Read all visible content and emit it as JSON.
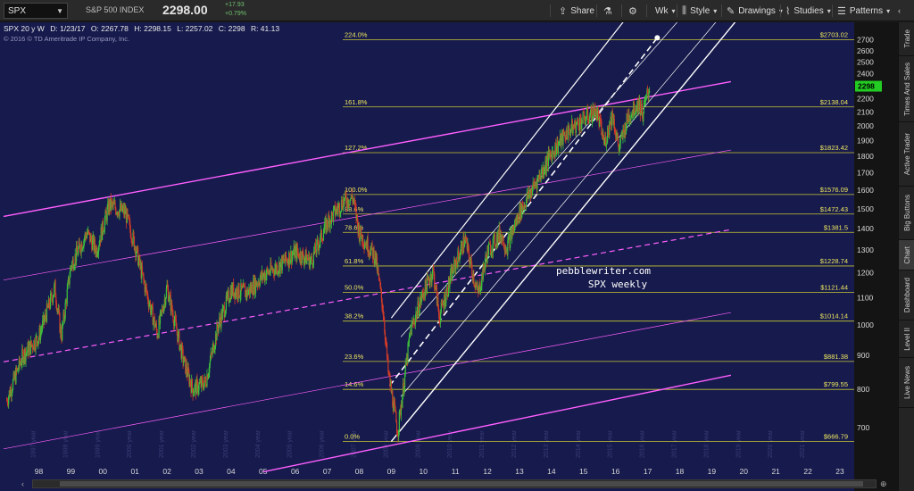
{
  "toolbar": {
    "symbol": "SPX",
    "description": "S&P 500 INDEX",
    "price": "2298.00",
    "change": "+17.93",
    "change_pct": "+0.79%",
    "buttons": {
      "share": "Share",
      "period": "Wk",
      "style": "Style",
      "drawings": "Drawings",
      "studies": "Studies",
      "patterns": "Patterns"
    },
    "icons": [
      "share-icon",
      "flask-icon",
      "gear-icon",
      "calendar-icon",
      "style-icon",
      "pencil-icon",
      "studies-icon",
      "patterns-icon"
    ]
  },
  "chart_header": {
    "title": "SPX 20 y W",
    "date": "D: 1/23/17",
    "open": "O: 2267.78",
    "high": "H: 2298.15",
    "low": "L: 2257.02",
    "close": "C: 2298",
    "range": "R: 41.13",
    "copyright": "© 2016 © TD Ameritrade IP Company, Inc."
  },
  "annotation": {
    "line1": "pebblewriter.com",
    "line2": "SPX weekly"
  },
  "side_tabs": [
    "Trade",
    "Times And Sales",
    "Active Trader",
    "Big Buttons",
    "Chart",
    "Dashboard",
    "Level II",
    "Live News"
  ],
  "colors": {
    "chart_bg": "#161a4c",
    "fib_line": "#c8c832",
    "channel_magenta": "#ff5fff",
    "channel_white": "#ffffff",
    "candle_up": "#3cbf3c",
    "candle_down": "#d23c28",
    "price_badge": "#22cc22"
  },
  "chart_data": {
    "type": "candlestick",
    "scale": "log",
    "ylim": [
      620,
      2800
    ],
    "y_ticks": [
      700,
      800,
      900,
      1000,
      1100,
      1200,
      1300,
      1400,
      1500,
      1600,
      1700,
      1800,
      1900,
      2000,
      2100,
      2200,
      2300,
      2400,
      2500,
      2600,
      2700
    ],
    "x_ticks": [
      "98",
      "99",
      "00",
      "01",
      "02",
      "03",
      "04",
      "05",
      "06",
      "07",
      "08",
      "09",
      "10",
      "11",
      "12",
      "13",
      "14",
      "15",
      "16",
      "17",
      "18",
      "19",
      "20",
      "21",
      "22",
      "23"
    ],
    "last_price": "2298",
    "fib_levels": [
      {
        "pct": "0.0%",
        "value": 666.79,
        "label": "$666.79"
      },
      {
        "pct": "14.6%",
        "value": 799.55,
        "label": "$799.55"
      },
      {
        "pct": "23.6%",
        "value": 881.38,
        "label": "$881.38"
      },
      {
        "pct": "38.2%",
        "value": 1014.14,
        "label": "$1014.14"
      },
      {
        "pct": "50.0%",
        "value": 1121.44,
        "label": "$1121.44"
      },
      {
        "pct": "61.8%",
        "value": 1228.74,
        "label": "$1228.74"
      },
      {
        "pct": "78.6%",
        "value": 1381.5,
        "label": "$1381.5"
      },
      {
        "pct": "88.6%",
        "value": 1472.43,
        "label": "$1472.43"
      },
      {
        "pct": "100.0%",
        "value": 1576.09,
        "label": "$1576.09"
      },
      {
        "pct": "127.2%",
        "value": 1823.42,
        "label": "$1823.42"
      },
      {
        "pct": "161.8%",
        "value": 2138.04,
        "label": "$2138.04"
      },
      {
        "pct": "224.0%",
        "value": 2703.02,
        "label": "$2703.02"
      }
    ],
    "price_path": [
      {
        "t": 1997.0,
        "v": 770
      },
      {
        "t": 1997.5,
        "v": 900
      },
      {
        "t": 1998.0,
        "v": 960
      },
      {
        "t": 1998.5,
        "v": 1140
      },
      {
        "t": 1998.7,
        "v": 960
      },
      {
        "t": 1999.0,
        "v": 1230
      },
      {
        "t": 1999.5,
        "v": 1380
      },
      {
        "t": 1999.8,
        "v": 1300
      },
      {
        "t": 2000.2,
        "v": 1520
      },
      {
        "t": 2000.7,
        "v": 1480
      },
      {
        "t": 2001.0,
        "v": 1320
      },
      {
        "t": 2001.3,
        "v": 1150
      },
      {
        "t": 2001.7,
        "v": 970
      },
      {
        "t": 2002.0,
        "v": 1140
      },
      {
        "t": 2002.5,
        "v": 890
      },
      {
        "t": 2002.8,
        "v": 800
      },
      {
        "t": 2003.2,
        "v": 820
      },
      {
        "t": 2003.6,
        "v": 1000
      },
      {
        "t": 2004.0,
        "v": 1130
      },
      {
        "t": 2004.5,
        "v": 1120
      },
      {
        "t": 2005.0,
        "v": 1190
      },
      {
        "t": 2005.5,
        "v": 1230
      },
      {
        "t": 2006.0,
        "v": 1290
      },
      {
        "t": 2006.5,
        "v": 1250
      },
      {
        "t": 2007.0,
        "v": 1430
      },
      {
        "t": 2007.5,
        "v": 1540
      },
      {
        "t": 2007.8,
        "v": 1560
      },
      {
        "t": 2008.0,
        "v": 1380
      },
      {
        "t": 2008.5,
        "v": 1270
      },
      {
        "t": 2008.75,
        "v": 1050
      },
      {
        "t": 2008.9,
        "v": 850
      },
      {
        "t": 2009.2,
        "v": 690
      },
      {
        "t": 2009.6,
        "v": 980
      },
      {
        "t": 2010.0,
        "v": 1120
      },
      {
        "t": 2010.3,
        "v": 1210
      },
      {
        "t": 2010.5,
        "v": 1030
      },
      {
        "t": 2010.9,
        "v": 1200
      },
      {
        "t": 2011.3,
        "v": 1350
      },
      {
        "t": 2011.7,
        "v": 1110
      },
      {
        "t": 2012.0,
        "v": 1290
      },
      {
        "t": 2012.4,
        "v": 1380
      },
      {
        "t": 2012.6,
        "v": 1310
      },
      {
        "t": 2013.0,
        "v": 1480
      },
      {
        "t": 2013.5,
        "v": 1640
      },
      {
        "t": 2014.0,
        "v": 1820
      },
      {
        "t": 2014.5,
        "v": 1960
      },
      {
        "t": 2015.0,
        "v": 2050
      },
      {
        "t": 2015.4,
        "v": 2110
      },
      {
        "t": 2015.65,
        "v": 1880
      },
      {
        "t": 2015.9,
        "v": 2090
      },
      {
        "t": 2016.1,
        "v": 1850
      },
      {
        "t": 2016.4,
        "v": 2070
      },
      {
        "t": 2016.7,
        "v": 2170
      },
      {
        "t": 2016.85,
        "v": 2090
      },
      {
        "t": 2017.06,
        "v": 2298
      }
    ]
  }
}
